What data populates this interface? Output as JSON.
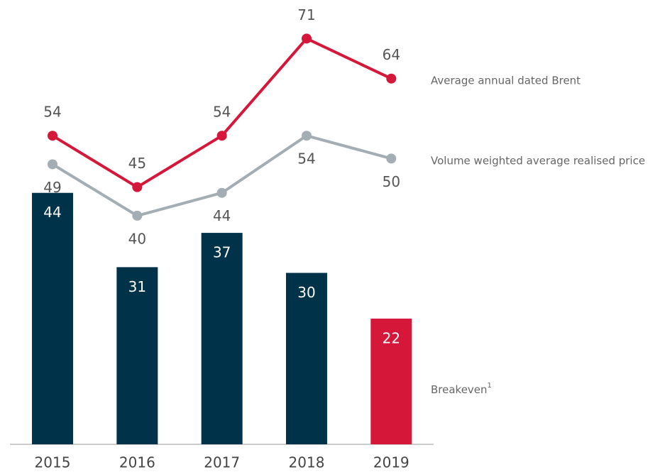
{
  "chart_data": {
    "type": "bar",
    "categories": [
      "2015",
      "2016",
      "2017",
      "2018",
      "2019"
    ],
    "ylim": [
      0,
      77.5
    ],
    "series": [
      {
        "name": "Breakeven",
        "footnote": "1",
        "type": "bar",
        "colors": [
          "#003349",
          "#003349",
          "#003349",
          "#003349",
          "#d5173a"
        ],
        "values": [
          44,
          31,
          37,
          30,
          22
        ]
      },
      {
        "name": "Average annual dated Brent",
        "type": "line",
        "color": "#d5173a",
        "values": [
          54,
          45,
          54,
          71,
          64
        ]
      },
      {
        "name": "Volume weighted average realised price",
        "type": "line",
        "color": "#a3adb4",
        "values": [
          49,
          40,
          44,
          54,
          50
        ]
      }
    ]
  }
}
